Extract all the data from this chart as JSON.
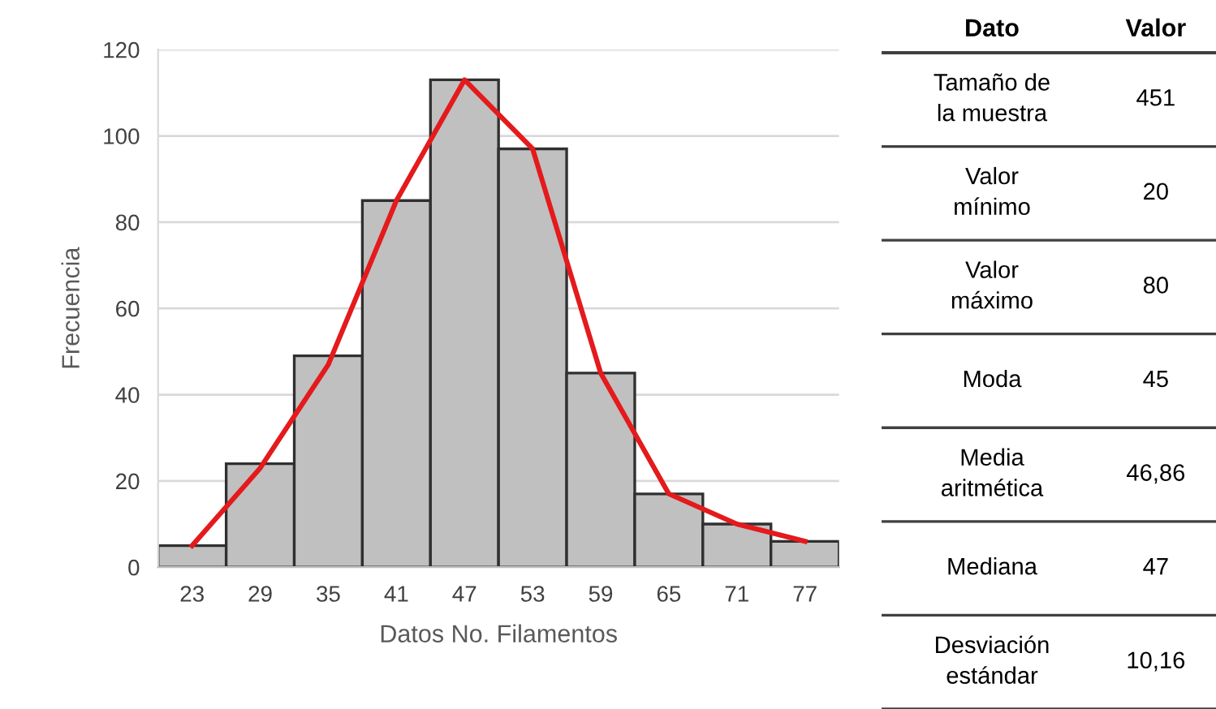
{
  "chart_data": [
    {
      "type": "histogram",
      "xlabel": "Datos No. Filamentos",
      "ylabel": "Frecuencia",
      "bins": [
        20,
        26,
        32,
        38,
        44,
        50,
        56,
        62,
        68,
        74,
        80
      ],
      "values": [
        5,
        24,
        49,
        85,
        113,
        97,
        45,
        17,
        10,
        6
      ],
      "color": "#c0c0c0",
      "series": [
        {
          "type": "line",
          "color": "#e41a1c",
          "x": [
            23,
            29,
            35,
            41,
            47,
            53,
            59,
            65,
            71,
            77
          ],
          "values": [
            5,
            23,
            47,
            85,
            113,
            97,
            45,
            17,
            10,
            6
          ]
        }
      ],
      "xlim": [
        20,
        80
      ],
      "ylim": [
        0,
        120
      ],
      "xticks": [
        23,
        29,
        35,
        41,
        47,
        53,
        59,
        65,
        71,
        77
      ],
      "yticks": [
        0,
        20,
        40,
        60,
        80,
        100,
        120
      ],
      "grid": "y"
    },
    {
      "type": "other",
      "annotations": [
        "Dato",
        "Valor",
        "Tamaño de\nla muestra",
        "451",
        "Valor\nmínimo",
        "20",
        "Valor\nmáximo",
        "80",
        "Moda",
        "45",
        "Media\naritmética",
        "46,86",
        "Mediana",
        "47",
        "Desviación\nestándar",
        "10,16"
      ]
    }
  ]
}
